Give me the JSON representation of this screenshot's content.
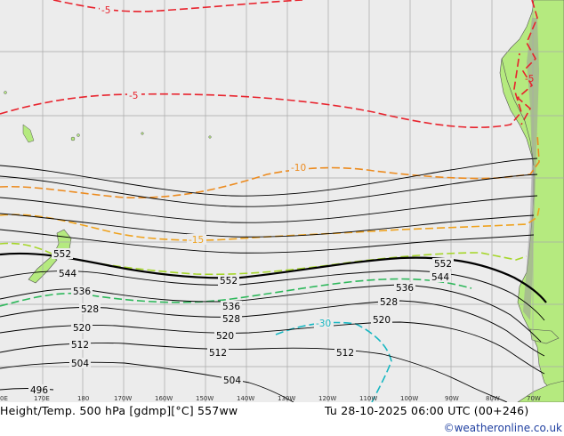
{
  "footer": {
    "title": "Height/Temp. 500 hPa [gdmp][°C] 557ww",
    "valid": "Tu 28-10-2025 06:00 UTC (00+246)",
    "brand": "©weatheronline.co.uk"
  },
  "axis": {
    "longitudes": [
      "0E",
      "170E",
      "180",
      "170W",
      "160W",
      "150W",
      "140W",
      "130W",
      "120W",
      "110W",
      "100W",
      "90W",
      "80W",
      "70W"
    ]
  },
  "height_labels": [
    "552",
    "544",
    "536",
    "528",
    "520",
    "512",
    "504",
    "496",
    "552",
    "536",
    "528",
    "520",
    "512",
    "504",
    "552",
    "544",
    "536",
    "528",
    "520",
    "512"
  ],
  "temp_labels": [
    "-5",
    "-5",
    "-5",
    "-10",
    "-15",
    "-30"
  ],
  "colors": {
    "land": "#b5ea7f",
    "sea": "#ececec",
    "grid": "#a8a8a8",
    "height": "#000000",
    "temp_minus5": "#e8232d",
    "temp_minus10": "#ec8b1f",
    "temp_minus15": "#efa21e",
    "temp_minus20": "#a6d62b",
    "temp_minus25": "#2eb85b",
    "temp_minus30": "#17b7c2",
    "brand": "#1f3fa0"
  }
}
